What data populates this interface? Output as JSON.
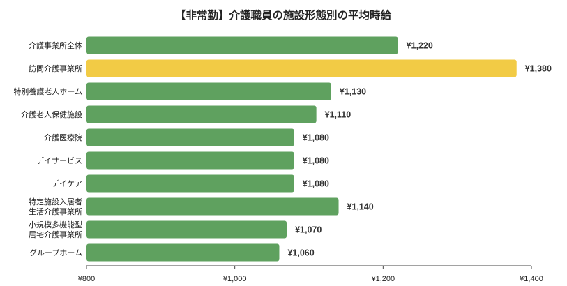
{
  "chart_data": {
    "type": "bar",
    "orientation": "horizontal",
    "title": "【非常勤】介護職員の施設形態別の平均時給",
    "categories": [
      [
        "介護事業所全体"
      ],
      [
        "訪問介護事業所"
      ],
      [
        "特別養護老人ホーム"
      ],
      [
        "介護老人保健施設"
      ],
      [
        "介護医療院"
      ],
      [
        "デイサービス"
      ],
      [
        "デイケア"
      ],
      [
        "特定施設入居者",
        "生活介護事業所"
      ],
      [
        "小規模多機能型",
        "居宅介護事業所"
      ],
      [
        "グループホーム"
      ]
    ],
    "values": [
      1220,
      1380,
      1130,
      1110,
      1080,
      1080,
      1080,
      1140,
      1070,
      1060
    ],
    "value_labels": [
      "¥1,220",
      "¥1,380",
      "¥1,130",
      "¥1,110",
      "¥1,080",
      "¥1,080",
      "¥1,080",
      "¥1,140",
      "¥1,070",
      "¥1,060"
    ],
    "xlim": [
      800,
      1400
    ],
    "xticks": [
      800,
      1000,
      1200,
      1400
    ],
    "xtick_labels": [
      "¥800",
      "¥1,000",
      "¥1,200",
      "¥1,400"
    ],
    "bar_color": "#5fa15f",
    "highlight_index": 1,
    "highlight_color": "#f2cb45",
    "grid": false,
    "legend": "none"
  }
}
